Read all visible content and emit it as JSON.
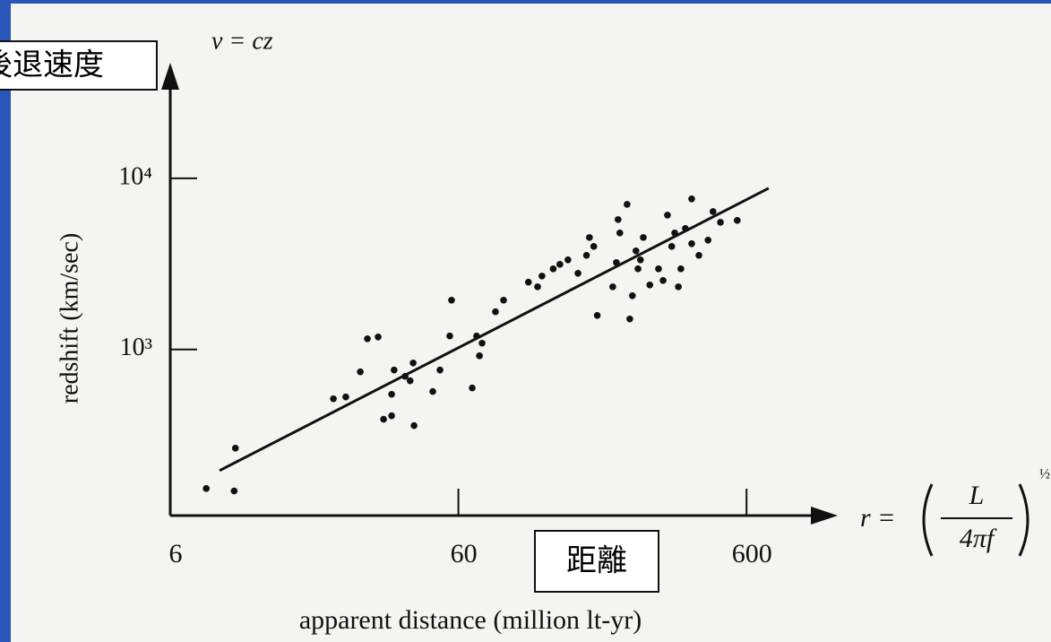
{
  "chart_data": {
    "type": "scatter",
    "top_formula": "v = cz",
    "x_formula": {
      "lhs": "r =",
      "numerator": "L",
      "denominator": "4πf",
      "exponent": "½"
    },
    "ylabel": "redshift (km/sec)",
    "xlabel": "apparent distance (million lt-yr)",
    "annotations": [
      "後退速度",
      "距離"
    ],
    "log_x": true,
    "log_y": true,
    "xlim": [
      6,
      1200
    ],
    "ylim": [
      107,
      53400
    ],
    "xticks": [
      6,
      60,
      600
    ],
    "yticks": [
      {
        "value": 1000,
        "label": "10³"
      },
      {
        "value": 10000,
        "label": "10⁴"
      }
    ],
    "color": "#111111",
    "x": [
      8.0,
      10.0,
      10.1,
      22.1,
      24.4,
      27.4,
      29.0,
      31.6,
      35.9,
      35.2,
      39.2,
      40.8,
      41.8,
      33.0,
      35.2,
      42.1,
      48.9,
      51.8,
      56.8,
      56.0,
      67.0,
      69.4,
      71.0,
      72.5,
      80.7,
      86.1,
      105,
      113,
      117,
      128,
      135,
      144,
      156,
      167,
      171,
      177,
      182,
      206,
      212,
      218,
      215,
      231,
      236,
      241,
      248,
      252,
      257,
      263,
      277,
      297,
      330,
      319,
      308,
      338,
      348,
      355,
      368,
      387,
      387,
      410,
      441,
      459,
      487,
      557
    ],
    "values": [
      154,
      149,
      265,
      515,
      528,
      740,
      1155,
      1183,
      758,
      547,
      697,
      656,
      834,
      391,
      410,
      359,
      568,
      758,
      1941,
      1199,
      596,
      1199,
      918,
      1088,
      1660,
      1941,
      2472,
      2323,
      2685,
      2958,
      3141,
      3339,
      2786,
      3548,
      4510,
      4000,
      1581,
      2323,
      3221,
      4797,
      5741,
      7047,
      1507,
      2061,
      3767,
      2958,
      3339,
      4510,
      2382,
      2958,
      4000,
      6095,
      2529,
      4797,
      2323,
      2958,
      5093,
      4150,
      7586,
      3548,
      4355,
      6397,
      5534,
      5676
    ],
    "fit_line": {
      "x": [
        8.9,
        716
      ],
      "values": [
        196,
        8750
      ]
    }
  }
}
